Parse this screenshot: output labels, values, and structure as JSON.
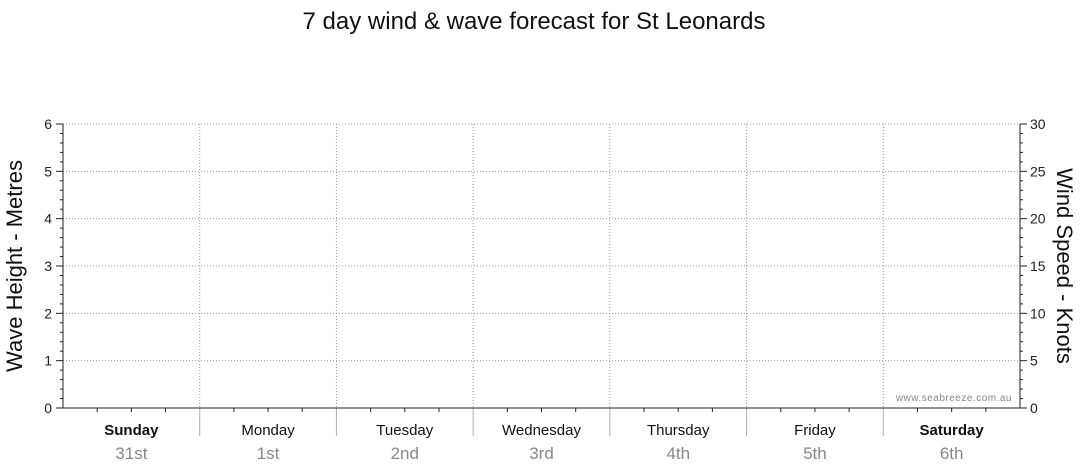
{
  "chart_data": {
    "type": "line",
    "title": "7 day wind & wave forecast for St Leonards",
    "ylabel_left": "Wave Height - Metres",
    "ylabel_right": "Wind Speed - Knots",
    "ylim_left": [
      0,
      6
    ],
    "ylim_right": [
      0,
      30
    ],
    "yticks_left": [
      "0",
      "1",
      "2",
      "3",
      "4",
      "5",
      "6"
    ],
    "yticks_right": [
      "0",
      "5",
      "10",
      "15",
      "20",
      "25",
      "30"
    ],
    "grid": true,
    "days": [
      {
        "name": "Sunday",
        "date": "31st",
        "bold": true
      },
      {
        "name": "Monday",
        "date": "1st",
        "bold": false
      },
      {
        "name": "Tuesday",
        "date": "2nd",
        "bold": false
      },
      {
        "name": "Wednesday",
        "date": "3rd",
        "bold": false
      },
      {
        "name": "Thursday",
        "date": "4th",
        "bold": false
      },
      {
        "name": "Friday",
        "date": "5th",
        "bold": false
      },
      {
        "name": "Saturday",
        "date": "6th",
        "bold": true
      }
    ],
    "series": []
  },
  "watermark": "www.seabreeze.com.au"
}
